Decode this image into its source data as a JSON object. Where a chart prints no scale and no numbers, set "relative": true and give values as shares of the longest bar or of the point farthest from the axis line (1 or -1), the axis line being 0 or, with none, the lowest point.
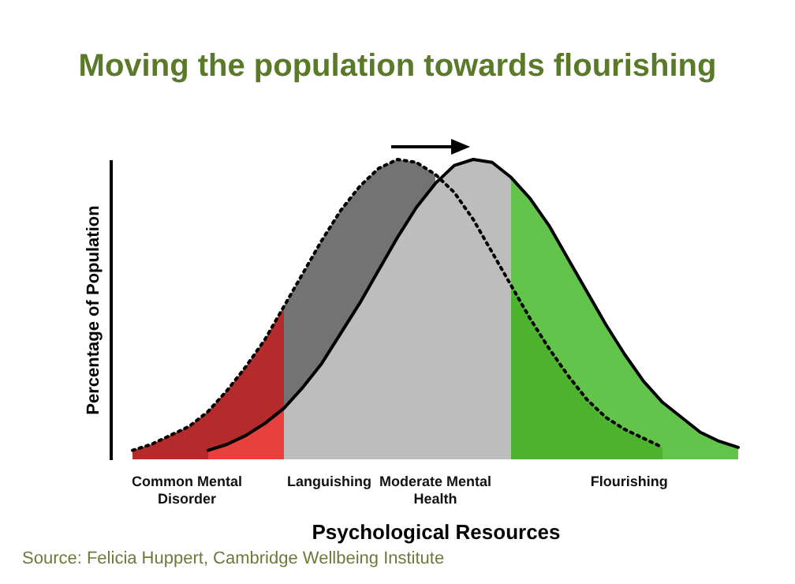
{
  "chart_data": {
    "type": "area",
    "relative": true,
    "title": "Moving the population towards flourishing",
    "xlabel": "Psychological Resources",
    "ylabel": "Percentage of Population",
    "categories": [
      null,
      null,
      null,
      null,
      null,
      null,
      null,
      null,
      null,
      null,
      null,
      null,
      null,
      null,
      null,
      null,
      null,
      null,
      null,
      null,
      null,
      null,
      null,
      null,
      null,
      null,
      null,
      null,
      null,
      null,
      null,
      null,
      null
    ],
    "series": [
      {
        "color": "#b52a2a",
        "values": [
          0.03,
          0.05,
          0.08,
          0.11,
          0.16,
          0.23,
          0.31,
          0.4,
          0.51,
          null,
          null,
          null,
          null,
          null,
          null,
          null,
          null,
          null,
          null,
          null,
          null,
          null,
          null,
          null,
          null,
          null,
          null,
          null,
          null,
          null,
          null,
          null,
          null
        ]
      },
      {
        "color": "#e8403c",
        "values": [
          null,
          null,
          null,
          null,
          0.03,
          0.05,
          0.08,
          0.12,
          0.17,
          null,
          null,
          null,
          null,
          null,
          null,
          null,
          null,
          null,
          null,
          null,
          null,
          null,
          null,
          null,
          null,
          null,
          null,
          null,
          null,
          null,
          null,
          null,
          null
        ]
      },
      {
        "color": "#737373",
        "values": [
          null,
          null,
          null,
          null,
          null,
          null,
          null,
          null,
          0.51,
          0.62,
          0.73,
          0.83,
          0.91,
          0.97,
          1.0,
          0.99,
          0.95,
          null,
          null,
          null,
          null,
          null,
          null,
          null,
          null,
          null,
          null,
          null,
          null,
          null,
          null,
          null,
          null
        ]
      },
      {
        "color": "#bdbdbd",
        "values": [
          null,
          null,
          null,
          null,
          null,
          null,
          null,
          null,
          0.17,
          0.24,
          0.32,
          0.42,
          0.52,
          0.63,
          0.74,
          0.84,
          0.92,
          0.98,
          1.0,
          0.99,
          0.94,
          null,
          null,
          null,
          null,
          null,
          null,
          null,
          null,
          null,
          null,
          null,
          null
        ]
      },
      {
        "color": "#62c44a",
        "values": [
          null,
          null,
          null,
          null,
          null,
          null,
          null,
          null,
          null,
          null,
          null,
          null,
          null,
          null,
          null,
          null,
          null,
          null,
          null,
          null,
          0.94,
          0.87,
          0.78,
          0.67,
          0.56,
          0.45,
          0.35,
          0.26,
          0.19,
          0.14,
          0.09,
          0.06,
          0.04
        ]
      },
      {
        "color": "#4db32e",
        "values": [
          null,
          null,
          null,
          null,
          null,
          null,
          null,
          null,
          null,
          null,
          null,
          null,
          null,
          null,
          null,
          null,
          null,
          null,
          null,
          null,
          0.58,
          0.47,
          0.37,
          0.28,
          0.2,
          0.14,
          0.1,
          0.07,
          0.04,
          null,
          null,
          null,
          null
        ]
      },
      {
        "type": "line",
        "color": "#000000",
        "line_style": "dotted",
        "values": [
          0.03,
          0.05,
          0.08,
          0.11,
          0.16,
          0.23,
          0.31,
          0.4,
          0.51,
          0.62,
          0.73,
          0.83,
          0.91,
          0.97,
          1.0,
          0.99,
          0.95,
          0.89,
          0.8,
          0.69,
          0.58,
          0.47,
          0.37,
          0.28,
          0.2,
          0.14,
          0.1,
          0.07,
          0.04,
          null,
          null,
          null,
          null
        ]
      },
      {
        "type": "line",
        "color": "#000000",
        "line_style": "solid",
        "values": [
          null,
          null,
          null,
          null,
          0.03,
          0.05,
          0.08,
          0.12,
          0.17,
          0.24,
          0.32,
          0.42,
          0.52,
          0.63,
          0.74,
          0.84,
          0.92,
          0.98,
          1.0,
          0.99,
          0.94,
          0.87,
          0.78,
          0.67,
          0.56,
          0.45,
          0.35,
          0.26,
          0.19,
          0.14,
          0.09,
          0.06,
          0.04
        ]
      }
    ],
    "annotations": [
      "Common Mental Disorder",
      "Languishing",
      "Moderate Mental Health",
      "Flourishing",
      "Source: Felicia Huppert, Cambridge Wellbeing Institute"
    ]
  }
}
